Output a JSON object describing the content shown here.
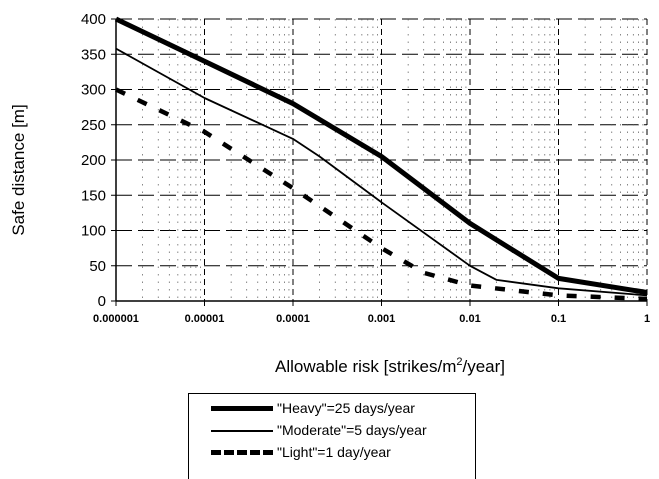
{
  "chart_data": {
    "type": "line",
    "title": "",
    "xlabel": "Allowable risk [strikes/m²/year]",
    "xlabel_parts": [
      "Allowable risk [strikes/m",
      "2",
      "/year]"
    ],
    "ylabel": "Safe distance [m]",
    "xscale": "log",
    "xlim": [
      1e-06,
      1
    ],
    "ylim": [
      0,
      400
    ],
    "xticks": [
      "0.000001",
      "0.00001",
      "0.0001",
      "0.001",
      "0.01",
      "0.1",
      "1"
    ],
    "yticks": [
      "0",
      "50",
      "100",
      "150",
      "200",
      "250",
      "300",
      "350",
      "400"
    ],
    "grid": true,
    "legend_position": "bottom-center-outside",
    "series": [
      {
        "name": "\"Heavy\"=25 days/year",
        "style": "thick-solid",
        "color": "#000000",
        "x": [
          1e-06,
          1e-05,
          0.0001,
          0.001,
          0.01,
          0.1,
          1
        ],
        "y": [
          400,
          340,
          280,
          205,
          110,
          32,
          12
        ]
      },
      {
        "name": "\"Moderate\"=5 days/year",
        "style": "thin-solid",
        "color": "#000000",
        "x": [
          1e-06,
          1e-05,
          0.0001,
          0.0002,
          0.001,
          0.01,
          0.02,
          0.1,
          1
        ],
        "y": [
          358,
          288,
          230,
          205,
          140,
          50,
          30,
          18,
          8
        ]
      },
      {
        "name": "\"Light\"=1 day/year",
        "style": "dashed",
        "color": "#000000",
        "x": [
          1e-06,
          1e-05,
          0.0001,
          0.001,
          0.003,
          0.01,
          0.1,
          1
        ],
        "y": [
          300,
          240,
          160,
          75,
          40,
          22,
          8,
          3
        ]
      }
    ]
  }
}
